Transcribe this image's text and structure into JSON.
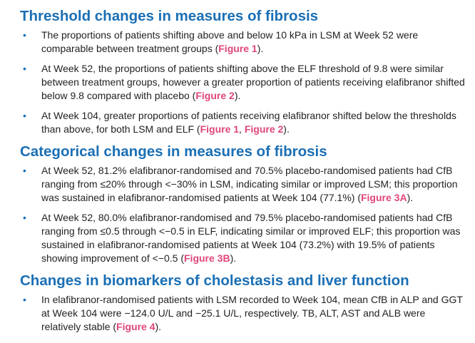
{
  "sections": [
    {
      "title": "Threshold changes in measures of fibrosis",
      "bullets": [
        {
          "text": "The proportions of patients shifting above and below 10 kPa in LSM at Week 52 were comparable between treatment groups (",
          "refs": [
            "Figure 1"
          ],
          "end": ")."
        },
        {
          "text": "At Week 52, the proportions of patients shifting above the ELF threshold of 9.8 were similar between treatment groups, however a greater proportion of patients receiving elafibranor shifted below 9.8 compared with placebo (",
          "refs": [
            "Figure 2"
          ],
          "end": ")."
        },
        {
          "text": "At Week 104, greater proportions of patients receiving elafibranor shifted below the thresholds than above, for both LSM and ELF (",
          "refs": [
            "Figure 1",
            "Figure 2"
          ],
          "sep": ", ",
          "end": ")."
        }
      ]
    },
    {
      "title": "Categorical changes in measures of fibrosis",
      "bullets": [
        {
          "text": "At Week 52, 81.2% elafibranor-randomised and 70.5% placebo-randomised patients had CfB ranging from ≤20% through <−30% in LSM, indicating similar or improved LSM; this proportion was sustained in elafibranor-randomised patients at Week 104 (77.1%) (",
          "refs": [
            "Figure 3A"
          ],
          "end": ")."
        },
        {
          "text": "At Week 52, 80.0% elafibranor-randomised and 79.5% placebo-randomised patients had CfB ranging from ≤0.5 through <−0.5 in ELF, indicating similar or improved ELF; this proportion was sustained in elafibranor-randomised patients at Week 104 (73.2%) with 19.5% of patients showing improvement of <−0.5 (",
          "refs": [
            "Figure 3B"
          ],
          "end": ")."
        }
      ]
    },
    {
      "title": "Changes in biomarkers of cholestasis and liver function",
      "bullets": [
        {
          "text": "In elafibranor-randomised patients with LSM recorded to Week 104, mean CfB in ALP and GGT at Week 104 were −124.0 U/L and −25.1 U/L, respectively. TB, ALT, AST and ALB were relatively stable (",
          "refs": [
            "Figure 4"
          ],
          "end": ")."
        }
      ]
    }
  ],
  "colors": {
    "heading": "#1a6fb5",
    "reference": "#e0457b",
    "body_text": "#222222"
  },
  "bullet_glyph": "•"
}
